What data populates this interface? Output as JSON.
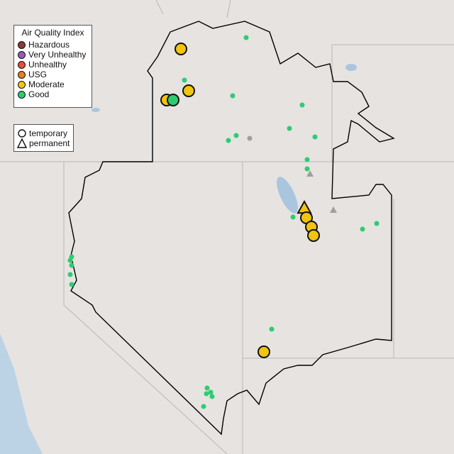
{
  "legend": {
    "title": "Air Quality Index",
    "categories": [
      {
        "label": "Hazardous",
        "color": "#8b3a3a"
      },
      {
        "label": "Very Unhealthy",
        "color": "#9b59b6"
      },
      {
        "label": "Unhealthy",
        "color": "#e74c3c"
      },
      {
        "label": "USG",
        "color": "#e67e22"
      },
      {
        "label": "Moderate",
        "color": "#f1c40f"
      },
      {
        "label": "Good",
        "color": "#2ecc71"
      }
    ]
  },
  "shape_legend": {
    "items": [
      {
        "label": "temporary",
        "shape": "circle"
      },
      {
        "label": "permanent",
        "shape": "triangle"
      }
    ]
  },
  "colors": {
    "background": "#e6e3e1",
    "border": "#000000",
    "state_line": "#b8b8b8",
    "water": "#a9c6de",
    "inactive": "#a0a0a0"
  }
}
